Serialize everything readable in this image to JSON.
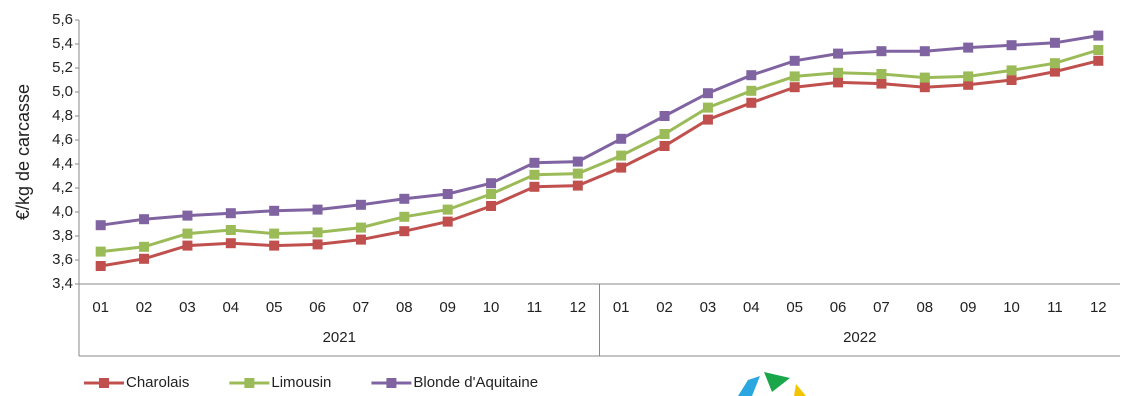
{
  "chart_data": {
    "type": "line",
    "y_label": "€/kg de carcasse",
    "categories": [
      "01",
      "02",
      "03",
      "04",
      "05",
      "06",
      "07",
      "08",
      "09",
      "10",
      "11",
      "12",
      "01",
      "02",
      "03",
      "04",
      "05",
      "06",
      "07",
      "08",
      "09",
      "10",
      "11",
      "12"
    ],
    "x_groups": [
      "2021",
      "2022"
    ],
    "ylim": [
      3.4,
      5.6
    ],
    "yticks": [
      {
        "value": 3.4,
        "label": "3,4"
      },
      {
        "value": 3.6,
        "label": "3,6"
      },
      {
        "value": 3.8,
        "label": "3,8"
      },
      {
        "value": 4.0,
        "label": "4,0"
      },
      {
        "value": 4.2,
        "label": "4,2"
      },
      {
        "value": 4.4,
        "label": "4,4"
      },
      {
        "value": 4.6,
        "label": "4,6"
      },
      {
        "value": 4.8,
        "label": "4,8"
      },
      {
        "value": 5.0,
        "label": "5,0"
      },
      {
        "value": 5.2,
        "label": "5,2"
      },
      {
        "value": 5.4,
        "label": "5,4"
      },
      {
        "value": 5.6,
        "label": "5,6"
      }
    ],
    "grid": false,
    "legend": "bottom-left",
    "series": [
      {
        "name": "Charolais",
        "color": "#c0504d",
        "values": [
          3.55,
          3.61,
          3.72,
          3.74,
          3.72,
          3.73,
          3.77,
          3.84,
          3.92,
          4.05,
          4.21,
          4.22,
          4.37,
          4.55,
          4.77,
          4.91,
          5.04,
          5.08,
          5.07,
          5.04,
          5.06,
          5.1,
          5.17,
          5.26
        ]
      },
      {
        "name": "Limousin",
        "color": "#9bbb59",
        "values": [
          3.67,
          3.71,
          3.82,
          3.85,
          3.82,
          3.83,
          3.87,
          3.96,
          4.02,
          4.15,
          4.31,
          4.32,
          4.47,
          4.65,
          4.87,
          5.01,
          5.13,
          5.16,
          5.15,
          5.12,
          5.13,
          5.18,
          5.24,
          5.35
        ]
      },
      {
        "name": "Blonde d'Aquitaine",
        "color": "#8064a2",
        "values": [
          3.89,
          3.94,
          3.97,
          3.99,
          4.01,
          4.02,
          4.06,
          4.11,
          4.15,
          4.24,
          4.41,
          4.42,
          4.61,
          4.8,
          4.99,
          5.14,
          5.26,
          5.32,
          5.34,
          5.34,
          5.37,
          5.39,
          5.41,
          5.47
        ]
      }
    ]
  }
}
